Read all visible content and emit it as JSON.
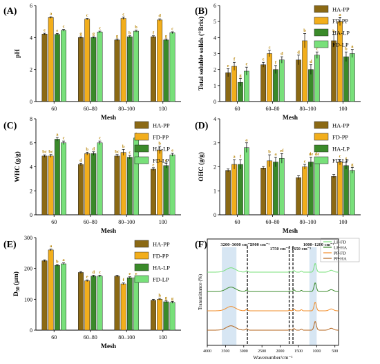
{
  "colors": {
    "HA-PP": "#8b6914",
    "FD-PP": "#f2ae1c",
    "HA-LP": "#3a8a2a",
    "FD-LP": "#78e07a",
    "sig_text": "#b8860b",
    "ftir_LP-FD": "#78e07a",
    "ftir_LP-HA": "#3a8a2a",
    "ftir_PP-FD": "#f28c28",
    "ftir_PP-HA": "#b5651d",
    "band_shade": "#c9ddef"
  },
  "chart_data": [
    {
      "id": "A",
      "letter": "(A)",
      "type": "bar",
      "categories": [
        "60",
        "60–80",
        "80–100",
        "100"
      ],
      "xlabel": "Mesh",
      "ylabel": "pH",
      "ylim": [
        0,
        6
      ],
      "yticks": [
        0,
        2,
        4,
        6
      ],
      "legend": "none",
      "series": [
        {
          "name": "HA-PP",
          "values": [
            4.22,
            4.0,
            3.85,
            4.05
          ],
          "errors": [
            0.05,
            0.05,
            0.06,
            0.06
          ],
          "letters": [
            "e",
            "g",
            "g",
            "f"
          ]
        },
        {
          "name": "FD-PP",
          "values": [
            5.25,
            5.15,
            5.2,
            5.1
          ],
          "errors": [
            0.05,
            0.05,
            0.07,
            0.07
          ],
          "letters": [
            "a",
            "c",
            "c",
            "d"
          ]
        },
        {
          "name": "HA-LP",
          "values": [
            4.2,
            4.0,
            4.05,
            3.85
          ],
          "errors": [
            0.06,
            0.05,
            0.06,
            0.06
          ],
          "letters": [
            "e",
            "g",
            "b",
            "g"
          ]
        },
        {
          "name": "FD-LP",
          "values": [
            4.45,
            4.35,
            4.4,
            4.3
          ],
          "errors": [
            0.06,
            0.05,
            0.06,
            0.06
          ],
          "letters": [
            "c",
            "c",
            "b",
            "c"
          ]
        }
      ]
    },
    {
      "id": "B",
      "letter": "(B)",
      "type": "bar",
      "categories": [
        "60",
        "60–80",
        "80–100",
        "100"
      ],
      "xlabel": "Mesh",
      "ylabel": "Total soluble solids (°Brix)",
      "ylim": [
        0,
        6
      ],
      "yticks": [
        0,
        1,
        2,
        3,
        4,
        5,
        6
      ],
      "legend": "top-right",
      "series": [
        {
          "name": "HA-PP",
          "values": [
            1.8,
            2.3,
            2.6,
            3.8
          ],
          "errors": [
            0.25,
            0.15,
            0.3,
            0.4
          ],
          "letters": [
            "e",
            "e",
            "d",
            "b"
          ]
        },
        {
          "name": "FD-PP",
          "values": [
            2.2,
            3.0,
            3.8,
            5.0
          ],
          "errors": [
            0.25,
            0.2,
            0.45,
            0.25
          ],
          "letters": [
            "f",
            "c",
            "b",
            "a"
          ]
        },
        {
          "name": "HA-LP",
          "values": [
            1.2,
            2.0,
            2.0,
            2.8
          ],
          "errors": [
            0.25,
            0.25,
            0.3,
            0.3
          ],
          "letters": [
            "g",
            "f",
            "d",
            "b"
          ]
        },
        {
          "name": "FD-LP",
          "values": [
            1.9,
            2.6,
            2.9,
            3.0
          ],
          "errors": [
            0.25,
            0.2,
            0.2,
            0.25
          ],
          "letters": [
            "e",
            "d",
            "c",
            "a"
          ]
        }
      ]
    },
    {
      "id": "C",
      "letter": "(C)",
      "type": "bar",
      "categories": [
        "60",
        "60–80",
        "80–100",
        "100"
      ],
      "xlabel": "Mesh",
      "ylabel": "WHC (g/g)",
      "ylim": [
        0,
        8
      ],
      "yticks": [
        0,
        2,
        4,
        6,
        8
      ],
      "legend": "top-right",
      "series": [
        {
          "name": "HA-PP",
          "values": [
            4.9,
            4.2,
            4.9,
            3.8
          ],
          "errors": [
            0.1,
            0.1,
            0.12,
            0.12
          ],
          "letters": [
            "bc",
            "d",
            "bc",
            "e"
          ]
        },
        {
          "name": "FD-PP",
          "values": [
            4.9,
            5.1,
            5.2,
            5.4
          ],
          "errors": [
            0.12,
            0.12,
            0.25,
            0.3
          ],
          "letters": [
            "bc",
            "b",
            "b",
            "b"
          ]
        },
        {
          "name": "HA-LP",
          "values": [
            6.3,
            5.1,
            4.8,
            4.1
          ],
          "errors": [
            0.15,
            0.15,
            0.15,
            0.2
          ],
          "letters": [
            "a",
            "d",
            "c",
            "e"
          ]
        },
        {
          "name": "FD-LP",
          "values": [
            6.0,
            6.0,
            6.4,
            5.0
          ],
          "errors": [
            0.15,
            0.15,
            0.12,
            0.12
          ],
          "letters": [
            "c",
            "c",
            "a",
            "e"
          ]
        }
      ]
    },
    {
      "id": "D",
      "letter": "(D)",
      "type": "bar",
      "categories": [
        "60",
        "60–80",
        "80–100",
        "100"
      ],
      "xlabel": "Mesh",
      "ylabel": "OHC (g/g)",
      "ylim": [
        0,
        4
      ],
      "yticks": [
        0,
        1,
        2,
        3,
        4
      ],
      "legend": "top-right",
      "series": [
        {
          "name": "HA-PP",
          "values": [
            1.85,
            1.95,
            1.55,
            1.6
          ],
          "errors": [
            0.06,
            0.06,
            0.08,
            0.08
          ],
          "letters": [
            "",
            "",
            "",
            ""
          ]
        },
        {
          "name": "FD-PP",
          "values": [
            2.1,
            2.25,
            2.0,
            2.2
          ],
          "errors": [
            0.2,
            0.25,
            0.1,
            0.12
          ],
          "letters": [
            "a",
            "b",
            "c",
            "c"
          ]
        },
        {
          "name": "HA-LP",
          "values": [
            2.1,
            2.2,
            2.2,
            2.05
          ],
          "errors": [
            0.2,
            0.2,
            0.2,
            0.15
          ],
          "letters": [
            "f",
            "a",
            "de",
            "f"
          ]
        },
        {
          "name": "FD-LP",
          "values": [
            2.8,
            2.35,
            2.3,
            1.85
          ],
          "errors": [
            0.2,
            0.2,
            0.1,
            0.12
          ],
          "letters": [
            "a",
            "ef",
            "de",
            "g"
          ]
        }
      ]
    },
    {
      "id": "E",
      "letter": "(E)",
      "type": "bar",
      "categories": [
        "60",
        "60–80",
        "80–100",
        "100"
      ],
      "xlabel": "Mesh",
      "ylabel": "D50 (μm)",
      "ylim": [
        0,
        300
      ],
      "yticks": [
        0,
        100,
        200,
        300
      ],
      "legend": "top-right",
      "series": [
        {
          "name": "HA-PP",
          "values": [
            225,
            187,
            175,
            97
          ],
          "errors": [
            3,
            3,
            3,
            3
          ],
          "letters": [
            "",
            "",
            "",
            ""
          ]
        },
        {
          "name": "FD-PP",
          "values": [
            260,
            160,
            150,
            100
          ],
          "errors": [
            3,
            3,
            3,
            3
          ],
          "letters": [
            "a",
            "e",
            "f",
            "h"
          ]
        },
        {
          "name": "HA-LP",
          "values": [
            210,
            175,
            170,
            92
          ],
          "errors": [
            3,
            3,
            3,
            3
          ],
          "letters": [
            "b",
            "d",
            "e",
            "g"
          ]
        },
        {
          "name": "FD-LP",
          "values": [
            215,
            175,
            170,
            90
          ],
          "errors": [
            3,
            3,
            3,
            3
          ],
          "letters": [
            "a",
            "c",
            "e",
            "g"
          ]
        }
      ]
    },
    {
      "id": "F",
      "letter": "(F)",
      "type": "line",
      "xlabel": "Wavenumber/cm⁻¹",
      "ylabel": "Transmittance (%)",
      "xlim": [
        4000,
        400
      ],
      "xticks": [
        4000,
        3500,
        3000,
        2500,
        2000,
        1500,
        1000,
        500
      ],
      "legend": "top-right",
      "bands": [
        {
          "label": "3200–3600 cm⁻¹",
          "from": 3600,
          "to": 3200,
          "shaded": true
        },
        {
          "label": "2900 cm⁻¹",
          "at": 2900,
          "dashed": true
        },
        {
          "label": "1750 cm⁻¹",
          "at": 1750,
          "dashed": true
        },
        {
          "label": "1650 cm⁻¹",
          "at": 1650,
          "dashed": true
        },
        {
          "label": "1000–1200 cm⁻¹",
          "from": 1200,
          "to": 1000,
          "shaded": true
        }
      ],
      "series": [
        {
          "name": "LP-FD",
          "offset": 3
        },
        {
          "name": "LP-HA",
          "offset": 2
        },
        {
          "name": "PP-FD",
          "offset": 1
        },
        {
          "name": "PP-HA",
          "offset": 0
        }
      ]
    }
  ]
}
